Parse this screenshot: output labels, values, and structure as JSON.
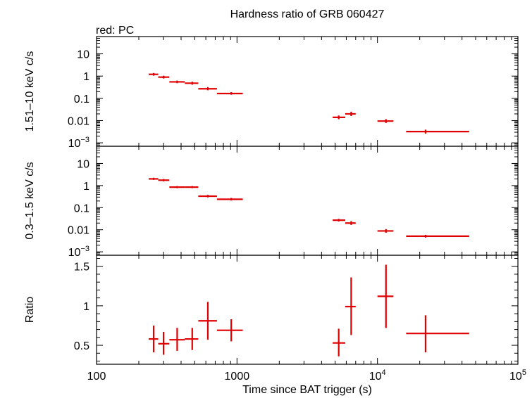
{
  "chart_data": {
    "type": "scatter",
    "title": "Hardness ratio of GRB 060427",
    "subtitle": "red: PC",
    "xlabel": "Time since BAT trigger (s)",
    "xscale": "log",
    "xlim": [
      100,
      100000
    ],
    "x_ticks": [
      {
        "value": 100,
        "label": "100"
      },
      {
        "value": 1000,
        "label": "1000"
      },
      {
        "value": 10000,
        "label": "10",
        "exp": "4"
      },
      {
        "value": 100000,
        "label": "10",
        "exp": "5"
      }
    ],
    "series_color": "#e00000",
    "panels": [
      {
        "name": "hard",
        "ylabel": "1.51–10 keV c/s",
        "yscale": "log",
        "ylim": [
          0.0007,
          60
        ],
        "y_ticks": [
          {
            "value": 10,
            "label": "10"
          },
          {
            "value": 1,
            "label": "1"
          },
          {
            "value": 0.1,
            "label": "0.1"
          },
          {
            "value": 0.01,
            "label": "0.01"
          },
          {
            "value": 0.001,
            "label": "10",
            "exp": "−3"
          }
        ],
        "points": [
          {
            "x": 255,
            "xlo": 235,
            "xhi": 275,
            "y": 1.2,
            "ylo": 1.05,
            "yhi": 1.38
          },
          {
            "x": 300,
            "xlo": 275,
            "xhi": 330,
            "y": 0.9,
            "ylo": 0.78,
            "yhi": 1.04
          },
          {
            "x": 375,
            "xlo": 330,
            "xhi": 425,
            "y": 0.55,
            "ylo": 0.48,
            "yhi": 0.63
          },
          {
            "x": 480,
            "xlo": 425,
            "xhi": 530,
            "y": 0.48,
            "ylo": 0.41,
            "yhi": 0.56
          },
          {
            "x": 620,
            "xlo": 530,
            "xhi": 720,
            "y": 0.27,
            "ylo": 0.23,
            "yhi": 0.32
          },
          {
            "x": 910,
            "xlo": 720,
            "xhi": 1100,
            "y": 0.165,
            "ylo": 0.145,
            "yhi": 0.19
          },
          {
            "x": 5300,
            "xlo": 4800,
            "xhi": 5900,
            "y": 0.014,
            "ylo": 0.0115,
            "yhi": 0.017
          },
          {
            "x": 6500,
            "xlo": 5900,
            "xhi": 7000,
            "y": 0.02,
            "ylo": 0.016,
            "yhi": 0.025
          },
          {
            "x": 11500,
            "xlo": 10000,
            "xhi": 13000,
            "y": 0.0095,
            "ylo": 0.0078,
            "yhi": 0.0116
          },
          {
            "x": 22000,
            "xlo": 16000,
            "xhi": 45000,
            "y": 0.0032,
            "ylo": 0.0026,
            "yhi": 0.0039
          }
        ]
      },
      {
        "name": "soft",
        "ylabel": "0.3–1.5 keV c/s",
        "yscale": "log",
        "ylim": [
          0.0007,
          60
        ],
        "y_ticks": [
          {
            "value": 10,
            "label": "10"
          },
          {
            "value": 1,
            "label": "1"
          },
          {
            "value": 0.1,
            "label": "0.1"
          },
          {
            "value": 0.01,
            "label": "0.01"
          },
          {
            "value": 0.001,
            "label": "10",
            "exp": "−3"
          }
        ],
        "points": [
          {
            "x": 255,
            "xlo": 235,
            "xhi": 275,
            "y": 2.0,
            "ylo": 1.8,
            "yhi": 2.25
          },
          {
            "x": 300,
            "xlo": 275,
            "xhi": 330,
            "y": 1.75,
            "ylo": 1.55,
            "yhi": 1.97
          },
          {
            "x": 375,
            "xlo": 330,
            "xhi": 425,
            "y": 0.85,
            "ylo": 0.76,
            "yhi": 0.95
          },
          {
            "x": 480,
            "xlo": 425,
            "xhi": 530,
            "y": 0.85,
            "ylo": 0.76,
            "yhi": 0.95
          },
          {
            "x": 620,
            "xlo": 530,
            "xhi": 720,
            "y": 0.33,
            "ylo": 0.29,
            "yhi": 0.38
          },
          {
            "x": 910,
            "xlo": 720,
            "xhi": 1100,
            "y": 0.24,
            "ylo": 0.21,
            "yhi": 0.275
          },
          {
            "x": 5300,
            "xlo": 4800,
            "xhi": 5900,
            "y": 0.027,
            "ylo": 0.0235,
            "yhi": 0.031
          },
          {
            "x": 6500,
            "xlo": 5900,
            "xhi": 7000,
            "y": 0.02,
            "ylo": 0.0165,
            "yhi": 0.0245
          },
          {
            "x": 11500,
            "xlo": 10000,
            "xhi": 13000,
            "y": 0.0088,
            "ylo": 0.0073,
            "yhi": 0.0107
          },
          {
            "x": 22000,
            "xlo": 16000,
            "xhi": 45000,
            "y": 0.0051,
            "ylo": 0.0044,
            "yhi": 0.0059
          }
        ]
      },
      {
        "name": "ratio",
        "ylabel": "Ratio",
        "yscale": "linear",
        "ylim": [
          0.26,
          1.64
        ],
        "y_ticks": [
          {
            "value": 1.5,
            "label": "1.5"
          },
          {
            "value": 1,
            "label": "1"
          },
          {
            "value": 0.5,
            "label": "0.5"
          }
        ],
        "y_minor_step": 0.1,
        "points": [
          {
            "x": 255,
            "xlo": 235,
            "xhi": 275,
            "y": 0.58,
            "ylo": 0.41,
            "yhi": 0.75
          },
          {
            "x": 300,
            "xlo": 275,
            "xhi": 330,
            "y": 0.52,
            "ylo": 0.38,
            "yhi": 0.67
          },
          {
            "x": 375,
            "xlo": 330,
            "xhi": 425,
            "y": 0.57,
            "ylo": 0.43,
            "yhi": 0.72
          },
          {
            "x": 480,
            "xlo": 425,
            "xhi": 530,
            "y": 0.58,
            "ylo": 0.44,
            "yhi": 0.72
          },
          {
            "x": 620,
            "xlo": 530,
            "xhi": 720,
            "y": 0.81,
            "ylo": 0.57,
            "yhi": 1.05
          },
          {
            "x": 910,
            "xlo": 720,
            "xhi": 1100,
            "y": 0.69,
            "ylo": 0.55,
            "yhi": 0.83
          },
          {
            "x": 5300,
            "xlo": 4800,
            "xhi": 5900,
            "y": 0.53,
            "ylo": 0.36,
            "yhi": 0.71
          },
          {
            "x": 6500,
            "xlo": 5900,
            "xhi": 7000,
            "y": 0.99,
            "ylo": 0.63,
            "yhi": 1.36
          },
          {
            "x": 11500,
            "xlo": 10000,
            "xhi": 13000,
            "y": 1.12,
            "ylo": 0.72,
            "yhi": 1.52
          },
          {
            "x": 22000,
            "xlo": 16000,
            "xhi": 45000,
            "y": 0.65,
            "ylo": 0.41,
            "yhi": 0.88
          }
        ]
      }
    ]
  }
}
